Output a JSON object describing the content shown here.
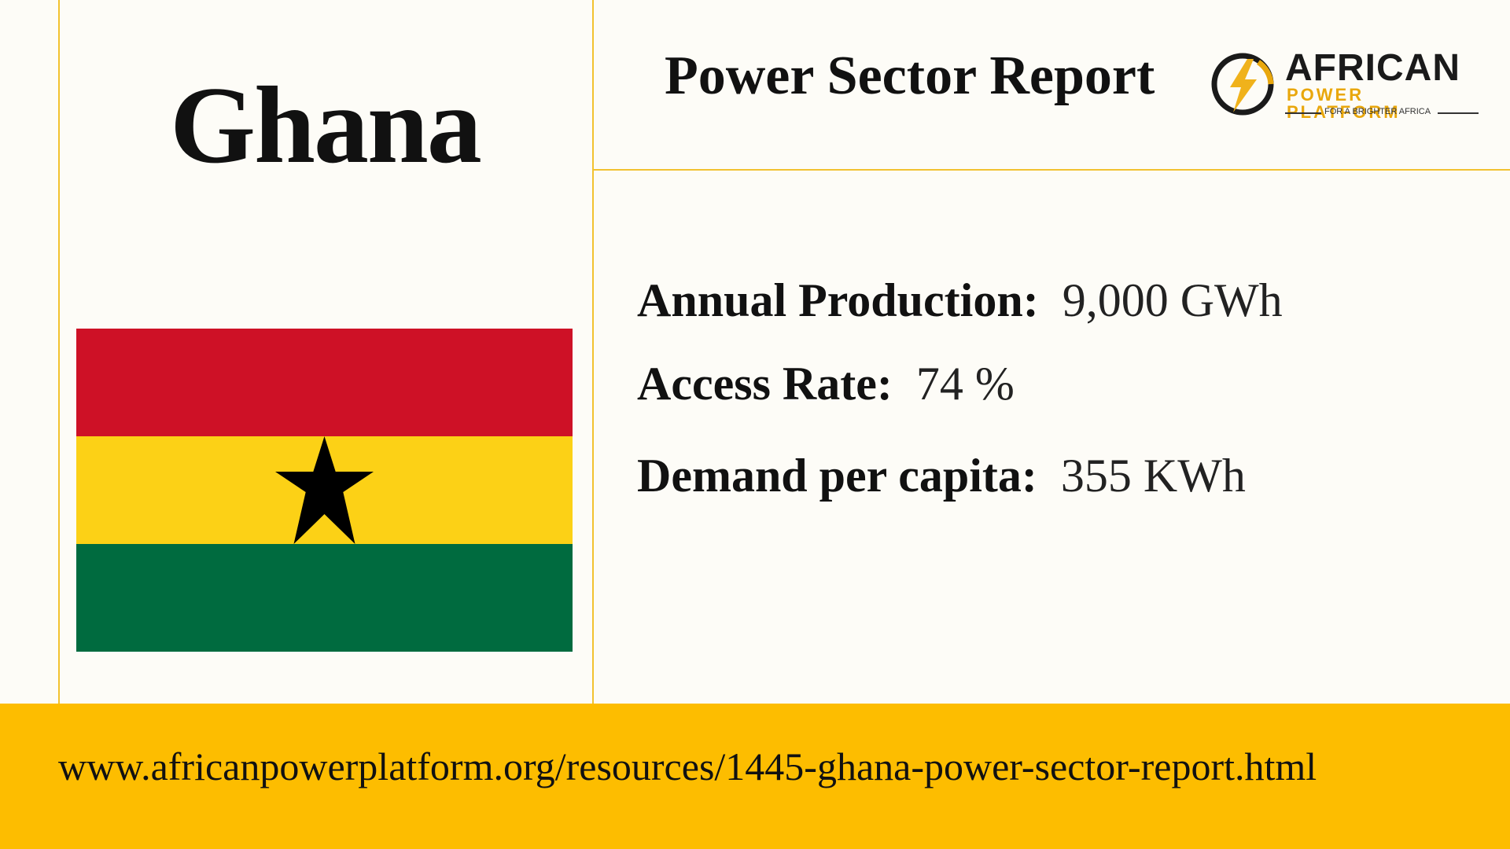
{
  "country": "Ghana",
  "report_title": "Power Sector Report",
  "logo": {
    "name": "AFRICAN",
    "subname": "POWER PLATFORM",
    "tagline": "FOR A BRIGHTER AFRICA",
    "icon": "lightning-bolt-icon"
  },
  "flag": {
    "icon": "black-star-icon",
    "colors": {
      "red": "#ce1126",
      "yellow": "#fcd116",
      "green": "#006b3f",
      "star": "#000000"
    }
  },
  "stats": [
    {
      "label": "Annual Production:",
      "value": "9,000 GWh"
    },
    {
      "label": "Access Rate:",
      "value": "74 %"
    },
    {
      "label": "Demand per capita:",
      "value": "355 KWh"
    }
  ],
  "footer": {
    "url": "www.africanpowerplatform.org/resources/1445-ghana-power-sector-report.html"
  },
  "colors": {
    "accent": "#fdbd00",
    "divider": "#f2c230",
    "background": "#fdfcf7"
  }
}
